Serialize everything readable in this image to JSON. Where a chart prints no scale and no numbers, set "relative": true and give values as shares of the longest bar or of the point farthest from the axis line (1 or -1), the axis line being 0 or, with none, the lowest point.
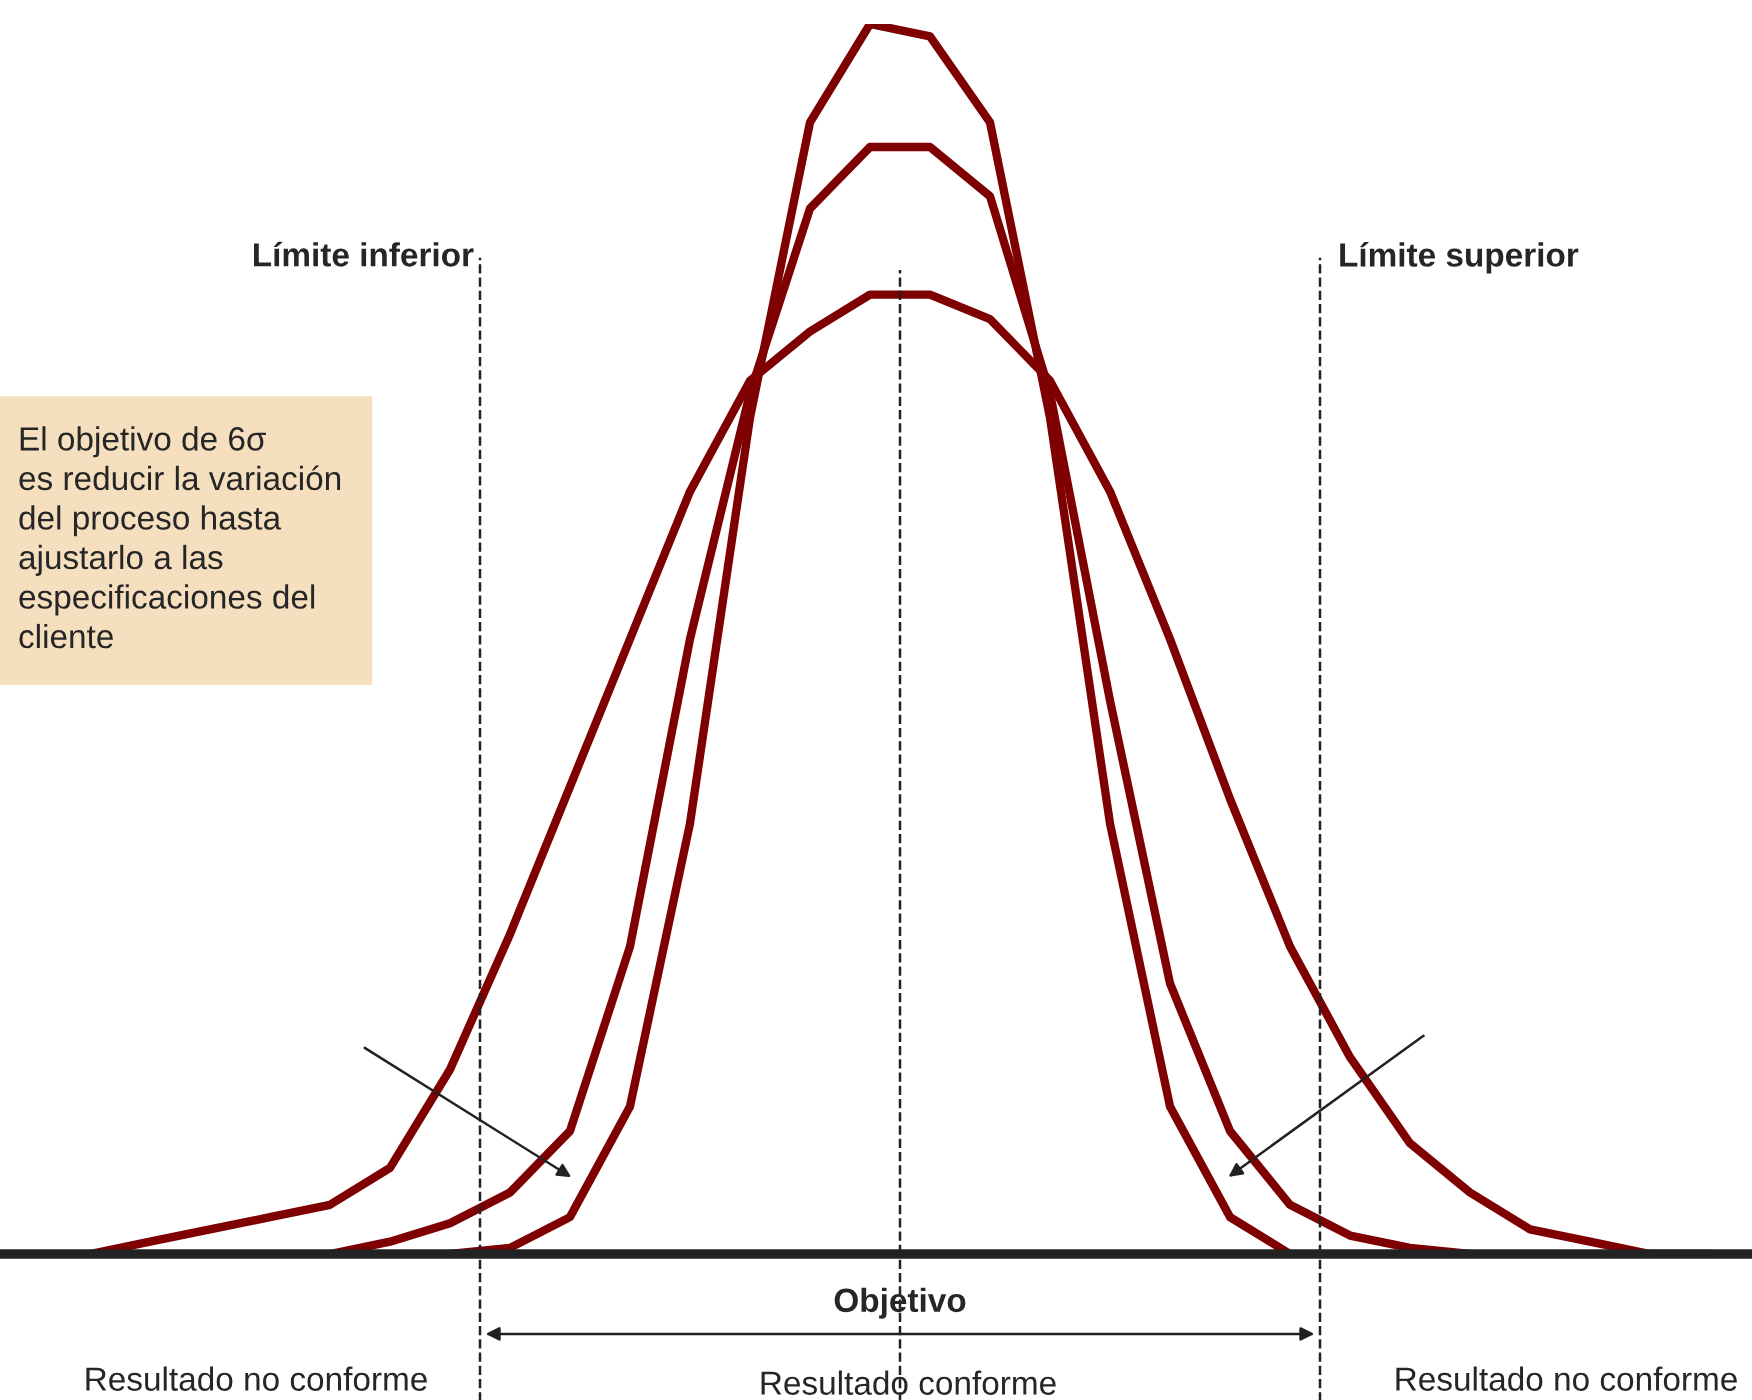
{
  "chart_data": {
    "type": "line",
    "relative": true,
    "marker": "none",
    "line_style": "solid",
    "categories": [
      null,
      null,
      null,
      null,
      null,
      null,
      null,
      null,
      null,
      null,
      null,
      null,
      null,
      null,
      null,
      null,
      null,
      null,
      null,
      null,
      null,
      null,
      null,
      null,
      null,
      null,
      null,
      null
    ],
    "series": [
      {
        "color": "#7f0000",
        "values": [
          0.0,
          0.01,
          0.02,
          0.03,
          0.04,
          0.07,
          0.15,
          0.26,
          0.38,
          0.5,
          0.62,
          0.71,
          0.75,
          0.78,
          0.78,
          0.76,
          0.71,
          0.62,
          0.5,
          0.37,
          0.25,
          0.16,
          0.09,
          0.05,
          0.02,
          0.01,
          0.0,
          0.0
        ]
      },
      {
        "color": "#7f0000",
        "values": [
          null,
          null,
          null,
          null,
          0.0,
          0.01,
          0.025,
          0.05,
          0.1,
          0.25,
          0.5,
          0.7,
          0.85,
          0.9,
          0.9,
          0.86,
          0.7,
          0.45,
          0.22,
          0.1,
          0.04,
          0.015,
          0.005,
          0.0,
          null,
          null,
          null,
          null
        ]
      },
      {
        "color": "#7f0000",
        "values": [
          null,
          null,
          null,
          null,
          null,
          null,
          0.0,
          0.005,
          0.03,
          0.12,
          0.35,
          0.68,
          0.92,
          1.0,
          0.99,
          0.92,
          0.68,
          0.35,
          0.12,
          0.03,
          0.0,
          null,
          null,
          null,
          null,
          null,
          null,
          null
        ]
      }
    ],
    "annotations": [
      "Límite inferior",
      "Límite superior",
      "El objetivo de 6σ\nes reducir la variación\ndel proceso hasta\najustarlo a las\nespecificaciones del\ncliente",
      "Objetivo",
      "Resultado no conforme",
      "Resultado conforme",
      "Resultado no conforme"
    ]
  }
}
